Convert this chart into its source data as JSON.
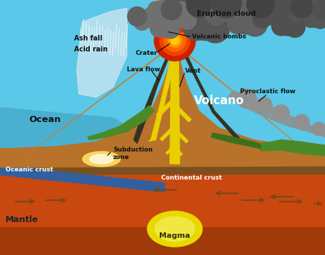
{
  "sky_color": "#5ac8e8",
  "cloud_dark": "#666666",
  "cloud_mid": "#888888",
  "volcano_brown": "#b8722a",
  "volcano_stripe": "#c98030",
  "volcano_dark": "#8a5518",
  "green1": "#4a8a28",
  "green2": "#3a7020",
  "lava_yellow": "#e8d000",
  "lava_orange": "#e87000",
  "eruption_red": "#dd3300",
  "eruption_orange": "#ff6600",
  "ocean_blue": "#4ab0d0",
  "oceanic_crust_blue": "#3060a0",
  "continental_brown": "#7a5020",
  "mantle_orange": "#c84810",
  "mantle_dark": "#a03a08",
  "magma_yellow": "#e8d800",
  "ash_white": "#d8e8f0",
  "pyro_gray": "#909090",
  "arrow_brown": "#7a4810",
  "subduction_glow": "#ffe060",
  "labels": {
    "eruption_cloud": "Eruption cloud",
    "volcanic_bombs": "Volcanic bombs",
    "ash_fall": "Ash fall",
    "acid_rain": "Acid rain",
    "crater": "Crater",
    "lava_flow": "Lava flow",
    "vent": "Vent",
    "volcano": "Volcano",
    "pyroclastic_flow": "Pyroclastic flow",
    "ocean": "Ocean",
    "subduction_zone": "Subduction\nzone",
    "oceanic_crust": "Oceanic crust",
    "continental_crust": "Continental crust",
    "mantle": "Mantle",
    "magma": "Magma"
  }
}
